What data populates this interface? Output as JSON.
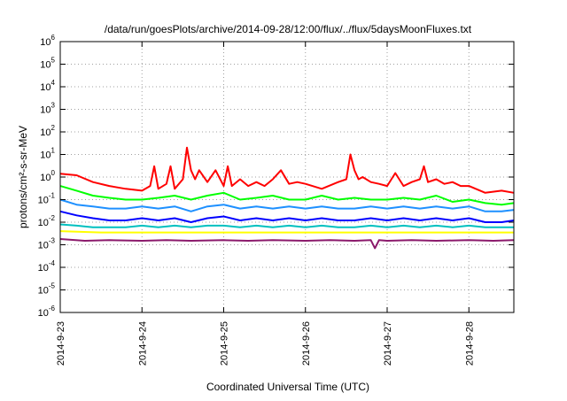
{
  "chart_data": {
    "type": "line",
    "title": "/data/run/goesPlots/archive/2014-09-28/12:00/flux/../flux/5daysMoonFluxes.txt",
    "xlabel": "Coordinated Universal Time (UTC)",
    "ylabel": "protons/cm²-s-sr-MeV",
    "y_scale": "log",
    "ylim_exponent": [
      -6,
      6
    ],
    "y_tick_exponents": [
      6,
      5,
      4,
      3,
      2,
      1,
      0,
      -1,
      -2,
      -3,
      -4,
      -5,
      -6
    ],
    "y_tick_base": "10",
    "x_range_days": [
      23,
      28.55
    ],
    "x_ticks": [
      {
        "day": 23,
        "label": "2014-9-23"
      },
      {
        "day": 24,
        "label": "2014-9-24"
      },
      {
        "day": 25,
        "label": "2014-9-25"
      },
      {
        "day": 26,
        "label": "2014-9-26"
      },
      {
        "day": 27,
        "label": "2014-9-27"
      },
      {
        "day": 28,
        "label": "2014-9-28"
      }
    ],
    "grid": true,
    "series": [
      {
        "color": "#ff0000",
        "x": [
          23.0,
          23.2,
          23.4,
          23.6,
          23.8,
          24.0,
          24.1,
          24.15,
          24.2,
          24.3,
          24.35,
          24.4,
          24.5,
          24.55,
          24.6,
          24.65,
          24.7,
          24.8,
          24.9,
          25.0,
          25.05,
          25.1,
          25.2,
          25.3,
          25.4,
          25.5,
          25.6,
          25.7,
          25.8,
          25.9,
          26.0,
          26.2,
          26.4,
          26.5,
          26.55,
          26.6,
          26.65,
          26.7,
          26.8,
          26.9,
          27.0,
          27.1,
          27.2,
          27.3,
          27.4,
          27.45,
          27.5,
          27.6,
          27.7,
          27.8,
          27.9,
          28.0,
          28.2,
          28.4,
          28.55
        ],
        "y": [
          1.4,
          1.2,
          0.6,
          0.4,
          0.3,
          0.25,
          0.4,
          3,
          0.3,
          0.5,
          3,
          0.3,
          0.8,
          20,
          2,
          0.8,
          2,
          0.6,
          2,
          0.4,
          3,
          0.4,
          0.8,
          0.4,
          0.6,
          0.4,
          0.8,
          2,
          0.5,
          0.6,
          0.5,
          0.3,
          0.6,
          0.8,
          10,
          2,
          0.8,
          1,
          0.6,
          0.5,
          0.4,
          1.5,
          0.4,
          0.6,
          0.8,
          3,
          0.6,
          0.8,
          0.5,
          0.6,
          0.4,
          0.4,
          0.2,
          0.25,
          0.2
        ]
      },
      {
        "color": "#00ff00",
        "x": [
          23.0,
          23.2,
          23.4,
          23.6,
          23.8,
          24.0,
          24.2,
          24.4,
          24.6,
          24.8,
          25.0,
          25.2,
          25.4,
          25.6,
          25.8,
          26.0,
          26.2,
          26.4,
          26.6,
          26.8,
          27.0,
          27.2,
          27.4,
          27.6,
          27.8,
          28.0,
          28.2,
          28.4,
          28.55
        ],
        "y": [
          0.4,
          0.25,
          0.15,
          0.12,
          0.1,
          0.1,
          0.12,
          0.15,
          0.1,
          0.15,
          0.2,
          0.1,
          0.12,
          0.15,
          0.1,
          0.1,
          0.15,
          0.1,
          0.12,
          0.1,
          0.1,
          0.12,
          0.1,
          0.15,
          0.08,
          0.1,
          0.07,
          0.06,
          0.07
        ]
      },
      {
        "color": "#1e90ff",
        "x": [
          23.0,
          23.2,
          23.4,
          23.6,
          23.8,
          24.0,
          24.2,
          24.4,
          24.6,
          24.8,
          25.0,
          25.2,
          25.4,
          25.6,
          25.8,
          26.0,
          26.2,
          26.4,
          26.6,
          26.8,
          27.0,
          27.2,
          27.4,
          27.6,
          27.8,
          28.0,
          28.2,
          28.4,
          28.55
        ],
        "y": [
          0.1,
          0.06,
          0.05,
          0.04,
          0.04,
          0.05,
          0.04,
          0.05,
          0.03,
          0.05,
          0.06,
          0.04,
          0.05,
          0.04,
          0.05,
          0.04,
          0.05,
          0.04,
          0.04,
          0.05,
          0.04,
          0.05,
          0.04,
          0.05,
          0.04,
          0.05,
          0.03,
          0.03,
          0.035
        ]
      },
      {
        "color": "#0000ff",
        "x": [
          23.0,
          23.2,
          23.4,
          23.6,
          23.8,
          24.0,
          24.2,
          24.4,
          24.6,
          24.8,
          25.0,
          25.2,
          25.4,
          25.6,
          25.8,
          26.0,
          26.2,
          26.4,
          26.6,
          26.8,
          27.0,
          27.2,
          27.4,
          27.6,
          27.8,
          28.0,
          28.2,
          28.4,
          28.55
        ],
        "y": [
          0.03,
          0.02,
          0.015,
          0.012,
          0.012,
          0.015,
          0.012,
          0.015,
          0.01,
          0.015,
          0.018,
          0.012,
          0.015,
          0.012,
          0.015,
          0.012,
          0.015,
          0.012,
          0.012,
          0.015,
          0.012,
          0.015,
          0.012,
          0.015,
          0.012,
          0.015,
          0.01,
          0.01,
          0.012
        ]
      },
      {
        "color": "#00c0c0",
        "x": [
          23.0,
          23.2,
          23.4,
          23.6,
          23.8,
          24.0,
          24.2,
          24.4,
          24.6,
          24.8,
          25.0,
          25.2,
          25.4,
          25.6,
          25.8,
          26.0,
          26.2,
          26.4,
          26.6,
          26.8,
          27.0,
          27.2,
          27.4,
          27.6,
          27.8,
          28.0,
          28.2,
          28.4,
          28.55
        ],
        "y": [
          0.008,
          0.007,
          0.006,
          0.006,
          0.006,
          0.007,
          0.006,
          0.007,
          0.006,
          0.007,
          0.007,
          0.006,
          0.007,
          0.006,
          0.007,
          0.006,
          0.007,
          0.006,
          0.006,
          0.007,
          0.006,
          0.007,
          0.006,
          0.007,
          0.006,
          0.007,
          0.006,
          0.006,
          0.006
        ]
      },
      {
        "color": "#ffff00",
        "x": [
          23.0,
          23.5,
          24.0,
          24.5,
          25.0,
          25.5,
          26.0,
          26.5,
          27.0,
          27.5,
          28.0,
          28.55
        ],
        "y": [
          0.004,
          0.0035,
          0.0035,
          0.0035,
          0.0035,
          0.0035,
          0.0035,
          0.0035,
          0.0035,
          0.0035,
          0.0035,
          0.0035
        ]
      },
      {
        "color": "#8b1a6b",
        "x": [
          23.0,
          23.3,
          23.6,
          24.0,
          24.3,
          24.6,
          25.0,
          25.3,
          25.6,
          26.0,
          26.3,
          26.6,
          26.8,
          26.85,
          26.9,
          27.0,
          27.3,
          27.6,
          28.0,
          28.3,
          28.55
        ],
        "y": [
          0.0018,
          0.0015,
          0.0016,
          0.0015,
          0.0016,
          0.0015,
          0.0016,
          0.0015,
          0.0016,
          0.0015,
          0.0016,
          0.0015,
          0.0016,
          0.0007,
          0.0016,
          0.0015,
          0.0016,
          0.0015,
          0.0016,
          0.0015,
          0.0016
        ]
      }
    ]
  }
}
